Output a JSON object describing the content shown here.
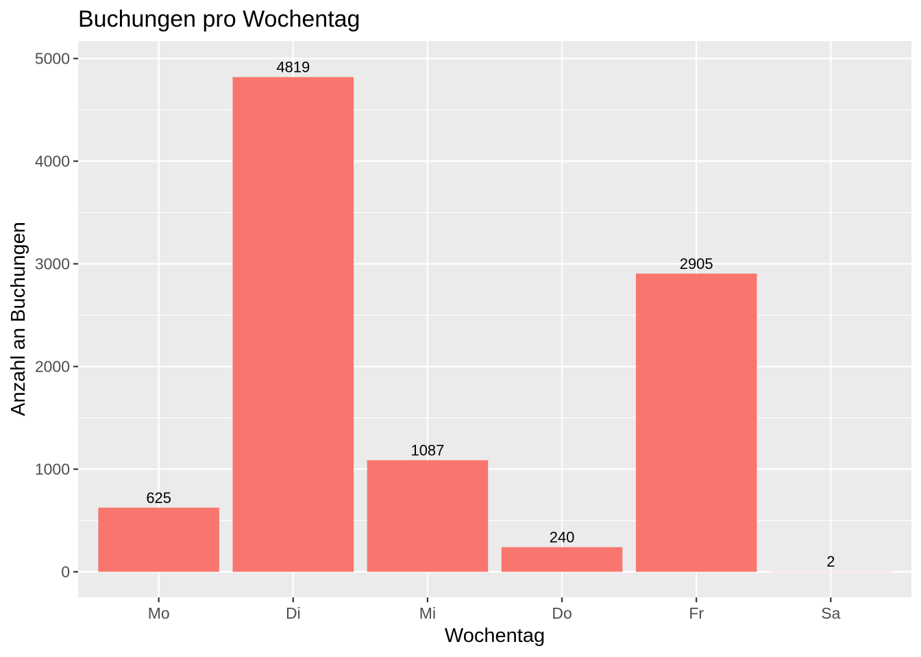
{
  "chart_data": {
    "type": "bar",
    "title": "Buchungen pro Wochentag",
    "xlabel": "Wochentag",
    "ylabel": "Anzahl an Buchungen",
    "categories": [
      "Mo",
      "Di",
      "Mi",
      "Do",
      "Fr",
      "Sa"
    ],
    "values": [
      625,
      4819,
      1087,
      240,
      2905,
      2
    ],
    "data_labels": [
      "625",
      "4819",
      "1087",
      "240",
      "2905",
      "2"
    ],
    "ylim": [
      -250,
      5170
    ],
    "yticks": [
      0,
      1000,
      2000,
      3000,
      4000,
      5000
    ],
    "ytick_labels": [
      "0",
      "1000",
      "2000",
      "3000",
      "4000",
      "5000"
    ],
    "grid": true,
    "legend": "none",
    "colors": {
      "bar": "#F8766D",
      "panel_background": "#EBEBEB",
      "grid": "#FFFFFF",
      "tick": "#333333"
    }
  }
}
